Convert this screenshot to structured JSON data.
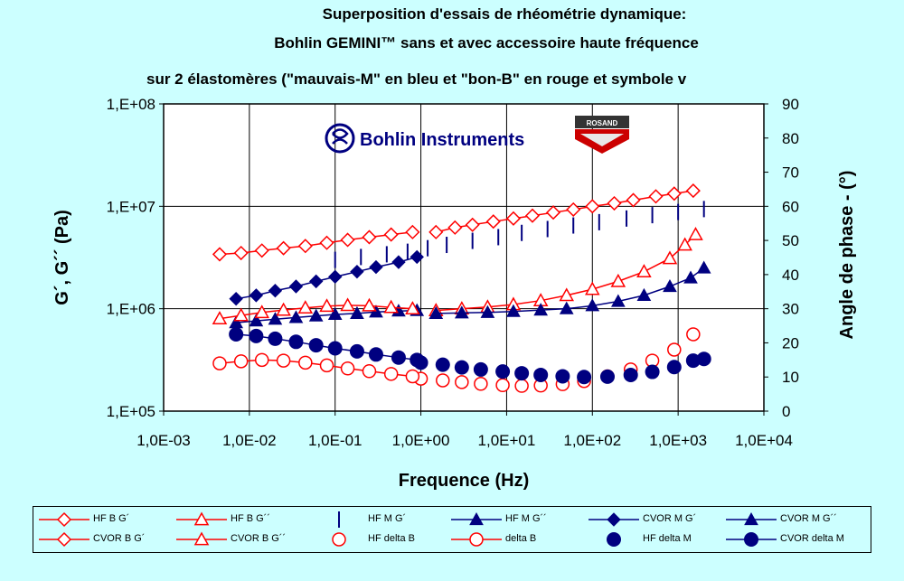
{
  "title": {
    "line1": "Superposition d'essais de rhéométrie dynamique:",
    "line2": "Bohlin GEMINI™ sans et avec accessoire haute fréquence",
    "line3": "sur 2 élastomères (\"mauvais-M\" en bleu et \"bon-B\" en rouge et symbole v"
  },
  "logos": {
    "bohlin_text": "Bohlin Instruments",
    "rosand_text": "ROSAND"
  },
  "colors": {
    "background": "#ccffff",
    "red": "#ff0000",
    "blue": "#000080"
  },
  "chart_data": {
    "type": "scatter",
    "x_scale": "log",
    "y_scale": "log",
    "xlabel": "Frequence (Hz)",
    "ylabel": "G´, G´´ (Pa)",
    "y2label": "Angle de phase - (°)",
    "xlim": [
      0.001,
      10000
    ],
    "ylim": [
      100000,
      100000000
    ],
    "y2lim": [
      0,
      90
    ],
    "x_ticks": [
      "1,0E-03",
      "1,0E-02",
      "1,0E-01",
      "1,0E+00",
      "1,0E+01",
      "1,0E+02",
      "1,0E+03",
      "1,0E+04"
    ],
    "y_ticks": [
      "1,E+05",
      "1,E+06",
      "1,E+07",
      "1,E+08"
    ],
    "y2_ticks": [
      "0",
      "10",
      "20",
      "30",
      "40",
      "50",
      "60",
      "70",
      "80",
      "90"
    ],
    "grid": true,
    "legend_position": "bottom",
    "series": [
      {
        "name": "HF B G´",
        "color": "#ff0000",
        "marker": "diamond-open",
        "line": true,
        "axis": "left",
        "points": [
          [
            1.5,
            5600000.0
          ],
          [
            2.5,
            6200000.0
          ],
          [
            4,
            6600000.0
          ],
          [
            7,
            7100000.0
          ],
          [
            12,
            7600000.0
          ],
          [
            20,
            8100000.0
          ],
          [
            35,
            8700000.0
          ],
          [
            60,
            9300000.0
          ],
          [
            100,
            10000000.0
          ],
          [
            180,
            10700000.0
          ],
          [
            300,
            11500000.0
          ],
          [
            550,
            12500000.0
          ],
          [
            900,
            13300000.0
          ],
          [
            1500,
            14200000.0
          ]
        ]
      },
      {
        "name": "HF B G´´",
        "color": "#ff0000",
        "marker": "triangle-open",
        "line": true,
        "axis": "left",
        "points": [
          [
            1.5,
            960000.0
          ],
          [
            3,
            1000000.0
          ],
          [
            6,
            1040000.0
          ],
          [
            12,
            1100000.0
          ],
          [
            25,
            1200000.0
          ],
          [
            50,
            1350000.0
          ],
          [
            100,
            1550000.0
          ],
          [
            200,
            1850000.0
          ],
          [
            400,
            2300000.0
          ],
          [
            800,
            3100000.0
          ],
          [
            1200,
            4200000.0
          ],
          [
            1600,
            5300000.0
          ]
        ]
      },
      {
        "name": "HF M G´",
        "color": "#000080",
        "marker": "vbar",
        "line": false,
        "axis": "left",
        "points": [
          [
            0.1,
            3000000.0
          ],
          [
            0.2,
            3200000.0
          ],
          [
            0.4,
            3400000.0
          ],
          [
            0.7,
            3600000.0
          ],
          [
            1.2,
            3900000.0
          ],
          [
            2,
            4200000.0
          ],
          [
            4,
            4600000.0
          ],
          [
            8,
            5000000.0
          ],
          [
            15,
            5500000.0
          ],
          [
            30,
            6000000.0
          ],
          [
            60,
            6500000.0
          ],
          [
            120,
            7000000.0
          ],
          [
            250,
            7600000.0
          ],
          [
            500,
            8200000.0
          ],
          [
            1000,
            8800000.0
          ],
          [
            2000,
            9400000.0
          ]
        ]
      },
      {
        "name": "HF M G´´",
        "color": "#000080",
        "marker": "triangle-filled",
        "line": true,
        "axis": "left",
        "points": [
          [
            1.5,
            900000.0
          ],
          [
            3,
            910000.0
          ],
          [
            6,
            920000.0
          ],
          [
            12,
            940000.0
          ],
          [
            25,
            970000.0
          ],
          [
            50,
            1000000.0
          ],
          [
            100,
            1070000.0
          ],
          [
            200,
            1180000.0
          ],
          [
            400,
            1350000.0
          ],
          [
            800,
            1650000.0
          ],
          [
            1400,
            2000000.0
          ],
          [
            2000,
            2500000.0
          ]
        ]
      },
      {
        "name": "CVOR M G´",
        "color": "#000080",
        "marker": "diamond-filled",
        "line": true,
        "axis": "left",
        "points": [
          [
            0.007,
            1250000.0
          ],
          [
            0.012,
            1350000.0
          ],
          [
            0.02,
            1500000.0
          ],
          [
            0.035,
            1650000.0
          ],
          [
            0.06,
            1850000.0
          ],
          [
            0.1,
            2050000.0
          ],
          [
            0.18,
            2300000.0
          ],
          [
            0.3,
            2550000.0
          ],
          [
            0.55,
            2850000.0
          ],
          [
            0.9,
            3200000.0
          ]
        ]
      },
      {
        "name": "CVOR M G´´",
        "color": "#000080",
        "marker": "triangle-filled",
        "line": true,
        "axis": "left",
        "points": [
          [
            0.007,
            730000.0
          ],
          [
            0.012,
            760000.0
          ],
          [
            0.02,
            790000.0
          ],
          [
            0.035,
            820000.0
          ],
          [
            0.06,
            850000.0
          ],
          [
            0.1,
            880000.0
          ],
          [
            0.18,
            900000.0
          ],
          [
            0.3,
            930000.0
          ],
          [
            0.55,
            950000.0
          ],
          [
            0.9,
            960000.0
          ]
        ]
      },
      {
        "name": "CVOR B G´",
        "color": "#ff0000",
        "marker": "diamond-open",
        "line": true,
        "axis": "left",
        "points": [
          [
            0.0045,
            3400000.0
          ],
          [
            0.008,
            3500000.0
          ],
          [
            0.014,
            3700000.0
          ],
          [
            0.025,
            3900000.0
          ],
          [
            0.045,
            4100000.0
          ],
          [
            0.08,
            4400000.0
          ],
          [
            0.14,
            4700000.0
          ],
          [
            0.25,
            5000000.0
          ],
          [
            0.45,
            5300000.0
          ],
          [
            0.8,
            5600000.0
          ]
        ]
      },
      {
        "name": "CVOR B G´´",
        "color": "#ff0000",
        "marker": "triangle-open",
        "line": true,
        "axis": "left",
        "points": [
          [
            0.0045,
            800000.0
          ],
          [
            0.008,
            860000.0
          ],
          [
            0.014,
            920000.0
          ],
          [
            0.025,
            970000.0
          ],
          [
            0.045,
            1020000.0
          ],
          [
            0.08,
            1060000.0
          ],
          [
            0.14,
            1080000.0
          ],
          [
            0.25,
            1070000.0
          ],
          [
            0.45,
            1030000.0
          ],
          [
            0.8,
            1000000.0
          ]
        ]
      },
      {
        "name": "HF delta B",
        "color": "#ff0000",
        "marker": "circle-open",
        "line": false,
        "axis": "right",
        "points": [
          [
            1.0,
            9.5
          ],
          [
            1.8,
            9.0
          ],
          [
            3,
            8.5
          ],
          [
            5,
            8.0
          ],
          [
            9,
            7.6
          ],
          [
            15,
            7.4
          ],
          [
            25,
            7.5
          ],
          [
            45,
            7.9
          ],
          [
            80,
            8.8
          ],
          [
            150,
            10.2
          ],
          [
            280,
            12.2
          ],
          [
            500,
            14.8
          ],
          [
            900,
            18.0
          ],
          [
            1500,
            22.5
          ]
        ]
      },
      {
        "name": "delta B",
        "color": "#ff0000",
        "marker": "circle-open",
        "line": true,
        "axis": "right",
        "points": [
          [
            0.0045,
            14.0
          ],
          [
            0.008,
            14.6
          ],
          [
            0.014,
            15.0
          ],
          [
            0.025,
            14.8
          ],
          [
            0.045,
            14.2
          ],
          [
            0.08,
            13.4
          ],
          [
            0.14,
            12.5
          ],
          [
            0.25,
            11.7
          ],
          [
            0.45,
            10.9
          ],
          [
            0.8,
            10.2
          ]
        ]
      },
      {
        "name": "HF delta M",
        "color": "#000080",
        "marker": "circle-filled",
        "line": false,
        "axis": "right",
        "points": [
          [
            1.0,
            14.2
          ],
          [
            1.8,
            13.6
          ],
          [
            3,
            12.8
          ],
          [
            5,
            12.2
          ],
          [
            9,
            11.6
          ],
          [
            15,
            11.1
          ],
          [
            25,
            10.6
          ],
          [
            45,
            10.2
          ],
          [
            80,
            10.0
          ],
          [
            150,
            10.1
          ],
          [
            280,
            10.6
          ],
          [
            500,
            11.5
          ],
          [
            900,
            12.9
          ],
          [
            1500,
            14.8
          ],
          [
            2000,
            15.3
          ]
        ]
      },
      {
        "name": "CVOR delta M",
        "color": "#000080",
        "marker": "circle-filled",
        "line": true,
        "axis": "right",
        "points": [
          [
            0.007,
            22.5
          ],
          [
            0.012,
            22.0
          ],
          [
            0.02,
            21.2
          ],
          [
            0.035,
            20.3
          ],
          [
            0.06,
            19.3
          ],
          [
            0.1,
            18.4
          ],
          [
            0.18,
            17.5
          ],
          [
            0.3,
            16.6
          ],
          [
            0.55,
            15.7
          ],
          [
            0.9,
            15.0
          ]
        ]
      }
    ]
  }
}
